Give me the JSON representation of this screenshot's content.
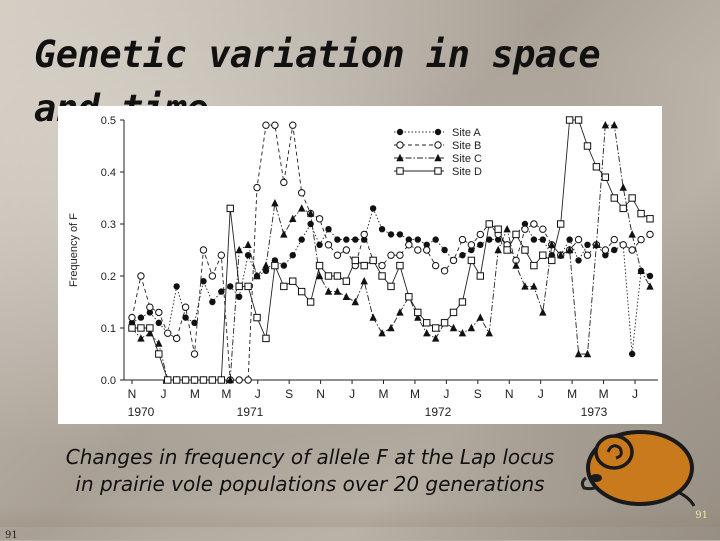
{
  "slide": {
    "title": "Genetic variation in space and time",
    "caption_part1": "Changes in frequency of allele ",
    "caption_allele": "F",
    "caption_part2": " at the ",
    "caption_locus": "Lap",
    "caption_part3": " locus",
    "caption_line2": "in prairie vole populations over 20 generations",
    "page_number_right": "91",
    "page_number_bottom": "91",
    "mouse_icon": "cartoon-mouse-icon"
  },
  "chart_data": {
    "type": "line",
    "title": "",
    "xlabel": "",
    "ylabel": "Frequency of F",
    "ylim": [
      0,
      0.5
    ],
    "yticks": [
      "0.0",
      "0.1",
      "0.2",
      "0.3",
      "0.4",
      "0.5"
    ],
    "x_month_labels": [
      "N",
      "J",
      "M",
      "M",
      "J",
      "S",
      "N",
      "J",
      "M",
      "M",
      "J",
      "S",
      "N",
      "J",
      "M",
      "M",
      "J"
    ],
    "x_year_labels": [
      "1970",
      "1971",
      "1972",
      "1973"
    ],
    "legend_position": "top-right",
    "series": [
      {
        "name": "Site A",
        "marker": "filled-circle",
        "line_style": "dotted",
        "values": [
          0.11,
          0.12,
          0.13,
          0.11,
          0.09,
          0.18,
          0.12,
          0.11,
          0.19,
          0.15,
          0.17,
          0.18,
          0.16,
          0.24,
          0.2,
          0.21,
          0.23,
          0.22,
          0.24,
          0.27,
          0.3,
          0.26,
          0.29,
          0.27,
          0.27,
          0.27,
          0.27,
          0.33,
          0.29,
          0.28,
          0.28,
          0.27,
          0.27,
          0.26,
          0.27,
          0.25,
          0.23,
          0.24,
          0.25,
          0.26,
          0.27,
          0.27,
          0.25,
          0.28,
          0.3,
          0.27,
          0.27,
          0.24,
          0.24,
          0.27,
          0.23,
          0.26,
          0.26,
          0.24,
          0.25,
          0.26,
          0.05,
          0.21,
          0.2
        ]
      },
      {
        "name": "Site B",
        "marker": "open-circle",
        "line_style": "dashed",
        "values": [
          0.12,
          0.2,
          0.14,
          0.13,
          0.09,
          0.08,
          0.14,
          0.05,
          0.25,
          0.2,
          0.24,
          0.0,
          0.0,
          0.0,
          0.37,
          0.49,
          0.49,
          0.38,
          0.49,
          0.36,
          0.32,
          0.31,
          0.26,
          0.24,
          0.25,
          0.22,
          0.28,
          0.23,
          0.22,
          0.24,
          0.24,
          0.26,
          0.25,
          0.25,
          0.22,
          0.21,
          0.23,
          0.27,
          0.26,
          0.28,
          0.3,
          0.28,
          0.26,
          0.23,
          0.29,
          0.3,
          0.29,
          0.26,
          0.24,
          0.25,
          0.27,
          0.24,
          0.26,
          0.25,
          0.27,
          0.26,
          0.25,
          0.27,
          0.28
        ]
      },
      {
        "name": "Site C",
        "marker": "filled-triangle",
        "line_style": "dash-dot",
        "values": [
          0.1,
          0.08,
          0.09,
          0.07,
          0.0,
          0.0,
          0.0,
          0.0,
          0.0,
          0.0,
          0.0,
          0.0,
          0.25,
          0.26,
          0.2,
          0.22,
          0.34,
          0.28,
          0.31,
          0.33,
          0.32,
          0.2,
          0.17,
          0.17,
          0.16,
          0.15,
          0.19,
          0.12,
          0.09,
          0.1,
          0.13,
          0.16,
          0.12,
          0.09,
          0.08,
          0.11,
          0.1,
          0.09,
          0.1,
          0.12,
          0.09,
          0.25,
          0.29,
          0.22,
          0.18,
          0.18,
          0.13,
          0.26,
          0.24,
          0.25,
          0.05,
          0.05,
          0.26,
          0.49,
          0.49,
          0.37,
          0.28,
          0.21,
          0.18
        ]
      },
      {
        "name": "Site D",
        "marker": "open-square",
        "line_style": "solid",
        "values": [
          0.1,
          0.1,
          0.1,
          0.05,
          0.0,
          0.0,
          0.0,
          0.0,
          0.0,
          0.0,
          0.0,
          0.33,
          0.18,
          0.18,
          0.12,
          0.08,
          0.22,
          0.18,
          0.19,
          0.17,
          0.15,
          0.22,
          0.2,
          0.2,
          0.19,
          0.23,
          0.22,
          0.23,
          0.2,
          0.18,
          0.22,
          0.16,
          0.13,
          0.11,
          0.1,
          0.11,
          0.13,
          0.15,
          0.23,
          0.2,
          0.3,
          0.29,
          0.25,
          0.28,
          0.25,
          0.22,
          0.24,
          0.23,
          0.3,
          0.5,
          0.5,
          0.45,
          0.41,
          0.39,
          0.35,
          0.33,
          0.35,
          0.32,
          0.31
        ]
      }
    ]
  }
}
